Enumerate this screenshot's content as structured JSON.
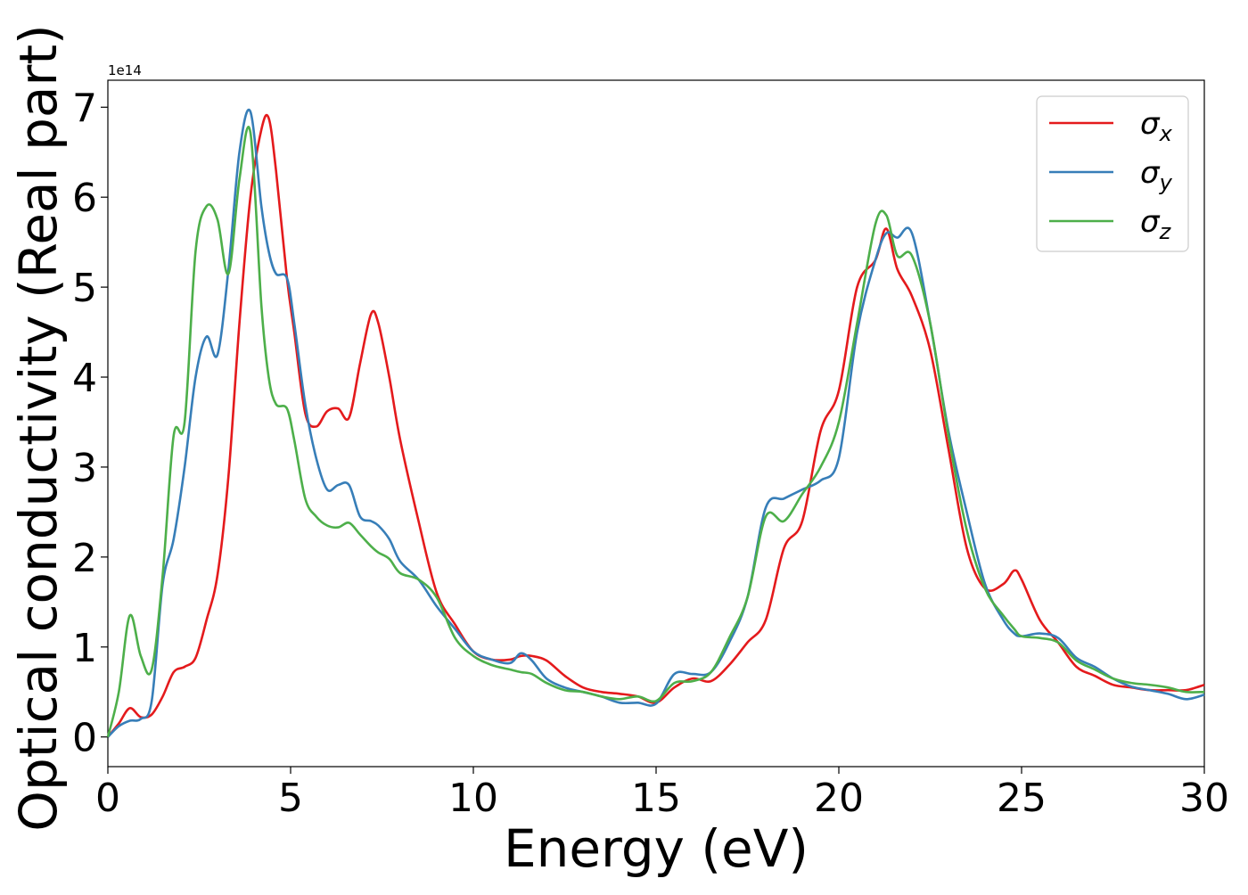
{
  "chart_data": {
    "type": "line",
    "title": "",
    "xlabel": "Energy (eV)",
    "ylabel": "Optical conductivity (Real part)",
    "y_offset_label": "1e14",
    "xlim": [
      0,
      30
    ],
    "ylim": [
      -0.33,
      7.3
    ],
    "xticks": [
      0,
      5,
      10,
      15,
      20,
      25,
      30
    ],
    "yticks": [
      0,
      1,
      2,
      3,
      4,
      5,
      6,
      7
    ],
    "grid": false,
    "legend_position": "upper right",
    "x": [
      0,
      0.3,
      0.6,
      0.9,
      1.2,
      1.5,
      1.8,
      2.1,
      2.4,
      2.7,
      3.0,
      3.3,
      3.6,
      3.9,
      4.2,
      4.4,
      4.6,
      4.9,
      5.1,
      5.4,
      5.7,
      6.0,
      6.3,
      6.6,
      6.9,
      7.2,
      7.4,
      7.7,
      8.0,
      8.5,
      9.0,
      9.5,
      10,
      10.5,
      11,
      11.3,
      11.6,
      12,
      12.5,
      13,
      13.5,
      14,
      14.5,
      15,
      15.5,
      16,
      16.5,
      17,
      17.5,
      18,
      18.5,
      19,
      19.5,
      20,
      20.5,
      21,
      21.3,
      21.6,
      22,
      22.5,
      23,
      23.5,
      24,
      24.5,
      24.8,
      25,
      25.5,
      26,
      26.5,
      27,
      27.5,
      28,
      28.5,
      29,
      29.5,
      30
    ],
    "series": [
      {
        "name": "σx",
        "color": "#e41a1c",
        "values": [
          0,
          0.15,
          0.32,
          0.22,
          0.25,
          0.45,
          0.72,
          0.78,
          0.88,
          1.3,
          1.8,
          2.9,
          4.6,
          6.0,
          6.75,
          6.88,
          6.3,
          5.1,
          4.5,
          3.6,
          3.45,
          3.62,
          3.65,
          3.55,
          4.15,
          4.7,
          4.6,
          4.0,
          3.3,
          2.4,
          1.6,
          1.25,
          0.95,
          0.86,
          0.86,
          0.9,
          0.9,
          0.85,
          0.68,
          0.55,
          0.5,
          0.48,
          0.45,
          0.38,
          0.55,
          0.65,
          0.62,
          0.8,
          1.05,
          1.3,
          2.1,
          2.4,
          3.4,
          3.85,
          5.0,
          5.3,
          5.65,
          5.2,
          4.9,
          4.3,
          3.2,
          2.1,
          1.65,
          1.7,
          1.85,
          1.75,
          1.3,
          1.05,
          0.78,
          0.68,
          0.58,
          0.55,
          0.52,
          0.52,
          0.52,
          0.58
        ]
      },
      {
        "name": "σy",
        "color": "#377eb8",
        "values": [
          0,
          0.12,
          0.18,
          0.2,
          0.4,
          1.7,
          2.2,
          3.0,
          4.0,
          4.45,
          4.25,
          5.2,
          6.5,
          6.95,
          5.9,
          5.4,
          5.15,
          5.1,
          4.6,
          3.7,
          3.1,
          2.75,
          2.8,
          2.8,
          2.45,
          2.4,
          2.35,
          2.2,
          1.95,
          1.75,
          1.45,
          1.2,
          0.95,
          0.86,
          0.82,
          0.93,
          0.85,
          0.65,
          0.55,
          0.5,
          0.45,
          0.38,
          0.38,
          0.37,
          0.7,
          0.7,
          0.72,
          1.05,
          1.55,
          2.55,
          2.65,
          2.75,
          2.85,
          3.1,
          4.5,
          5.3,
          5.6,
          5.55,
          5.6,
          4.6,
          3.4,
          2.5,
          1.7,
          1.3,
          1.15,
          1.12,
          1.15,
          1.1,
          0.88,
          0.78,
          0.65,
          0.56,
          0.52,
          0.48,
          0.42,
          0.47
        ]
      },
      {
        "name": "σz",
        "color": "#4daf4a",
        "values": [
          0,
          0.5,
          1.35,
          0.9,
          0.75,
          1.8,
          3.35,
          3.5,
          5.4,
          5.9,
          5.75,
          5.15,
          6.2,
          6.72,
          4.8,
          4.0,
          3.7,
          3.65,
          3.3,
          2.65,
          2.45,
          2.35,
          2.33,
          2.38,
          2.25,
          2.12,
          2.05,
          1.98,
          1.82,
          1.75,
          1.55,
          1.1,
          0.9,
          0.8,
          0.75,
          0.72,
          0.7,
          0.6,
          0.52,
          0.5,
          0.45,
          0.42,
          0.45,
          0.4,
          0.6,
          0.62,
          0.72,
          1.1,
          1.55,
          2.45,
          2.4,
          2.7,
          3.0,
          3.5,
          4.6,
          5.7,
          5.8,
          5.35,
          5.35,
          4.6,
          3.35,
          2.3,
          1.65,
          1.35,
          1.2,
          1.12,
          1.1,
          1.05,
          0.85,
          0.75,
          0.65,
          0.6,
          0.58,
          0.55,
          0.5,
          0.5
        ]
      }
    ]
  }
}
